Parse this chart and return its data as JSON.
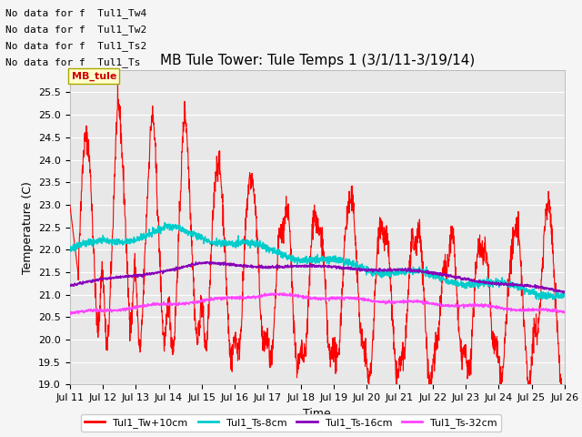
{
  "title": "MB Tule Tower: Tule Temps 1 (3/1/11-3/19/14)",
  "xlabel": "Time",
  "ylabel": "Temperature (C)",
  "ylim": [
    19.0,
    26.0
  ],
  "yticks": [
    19.0,
    19.5,
    20.0,
    20.5,
    21.0,
    21.5,
    22.0,
    22.5,
    23.0,
    23.5,
    24.0,
    24.5,
    25.0,
    25.5
  ],
  "xtick_labels": [
    "Jul 11",
    "Jul 12",
    "Jul 13",
    "Jul 14",
    "Jul 15",
    "Jul 16",
    "Jul 17",
    "Jul 18",
    "Jul 19",
    "Jul 20",
    "Jul 21",
    "Jul 22",
    "Jul 23",
    "Jul 24",
    "Jul 25",
    "Jul 26"
  ],
  "no_data_texts": [
    "No data for f  Tul1_Tw4",
    "No data for f  Tul1_Tw2",
    "No data for f  Tul1_Ts2",
    "No data for f  Tul1_Ts"
  ],
  "legend_entries": [
    "Tul1_Tw+10cm",
    "Tul1_Ts-8cm",
    "Tul1_Ts-16cm",
    "Tul1_Ts-32cm"
  ],
  "legend_colors": [
    "#ff0000",
    "#00cccc",
    "#7700cc",
    "#ff44ff"
  ],
  "bg_color": "#e8e8e8",
  "grid_color": "#ffffff",
  "title_fontsize": 11,
  "axis_label_fontsize": 9,
  "tick_fontsize": 8,
  "no_data_fontsize": 8
}
